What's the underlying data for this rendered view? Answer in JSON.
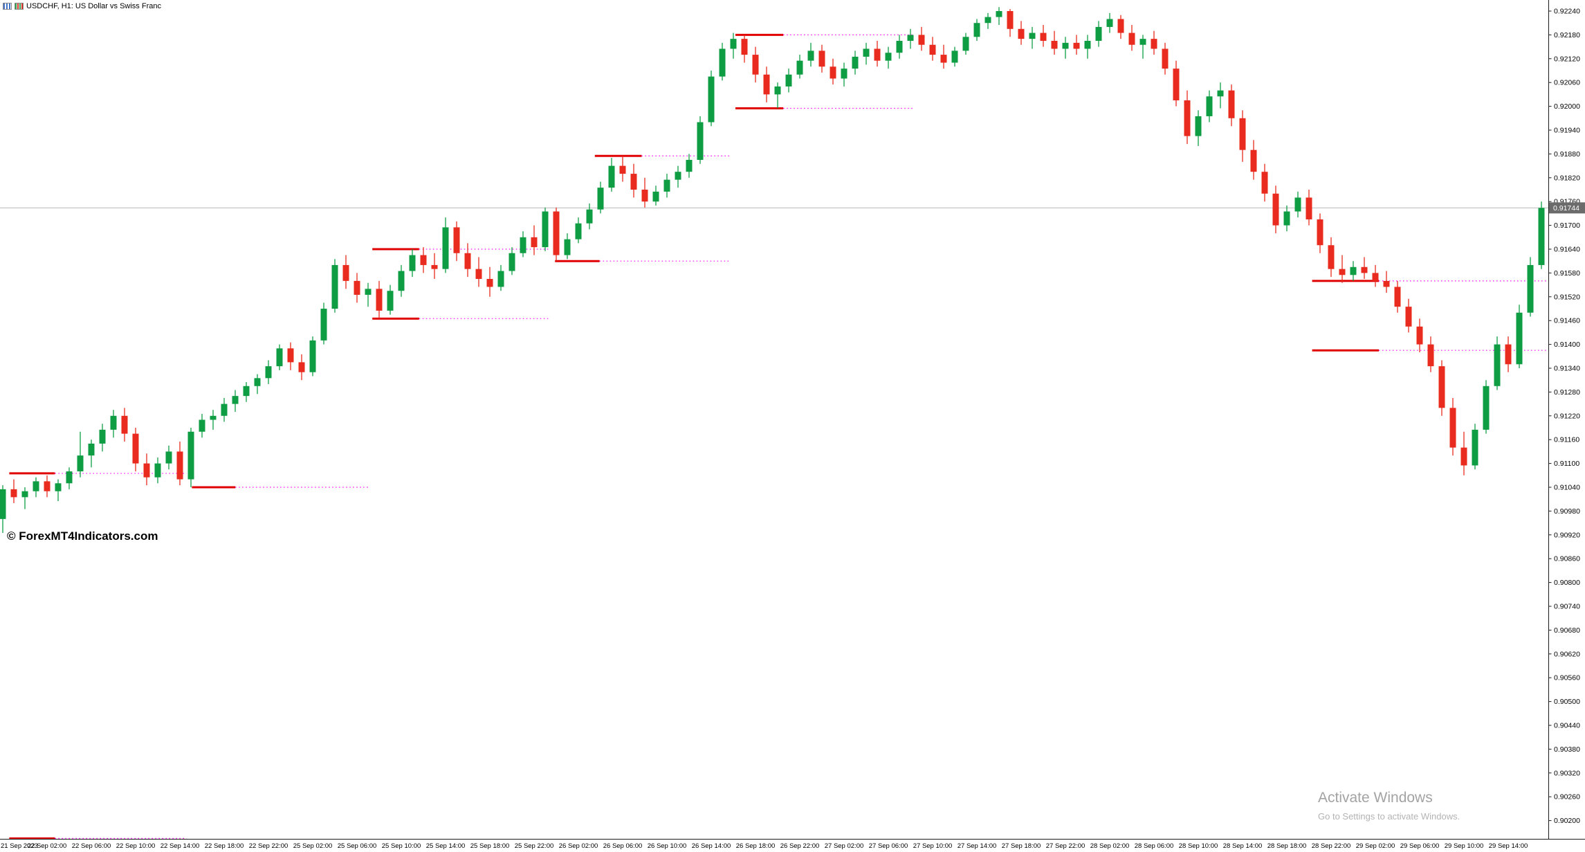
{
  "window": {
    "title": "USDCHF, H1: US Dollar vs Swiss Franc",
    "icons": [
      "chart-window-icon",
      "candlestick-icon"
    ]
  },
  "watermark": "© ForexMT4Indicators.com",
  "activation": {
    "line1": "Activate Windows",
    "line2": "Go to Settings to activate Windows."
  },
  "chart_data": {
    "type": "candlestick",
    "symbol": "USDCHF",
    "timeframe": "H1",
    "description": "US Dollar vs Swiss Franc",
    "current_price": "0.91744",
    "grid": false,
    "colors": {
      "background": "#ffffff",
      "bull": "#0f9d44",
      "bear": "#e82b1e",
      "level_solid": "#e00000",
      "level_dotted": "#ff00ff",
      "price_line": "#b9b9b9",
      "price_box_bg": "#6b6b6b",
      "axis": "#1a1a1a"
    },
    "y_axis": {
      "max": 0.9224,
      "min": 0.902,
      "step": 0.0006,
      "labels": [
        "0.92240",
        "0.92180",
        "0.92120",
        "0.92060",
        "0.92000",
        "0.91940",
        "0.91880",
        "0.91820",
        "0.91760",
        "0.91700",
        "0.91640",
        "0.91580",
        "0.91520",
        "0.91460",
        "0.91400",
        "0.91340",
        "0.91280",
        "0.91220",
        "0.91160",
        "0.91100",
        "0.91040",
        "0.90980",
        "0.90920",
        "0.90860",
        "0.90800",
        "0.90740",
        "0.90680",
        "0.90620",
        "0.90560",
        "0.90500",
        "0.90440",
        "0.90380",
        "0.90320",
        "0.90260",
        "0.90200"
      ]
    },
    "x_axis": {
      "labels": [
        "21 Sep 2023",
        "22 Sep 02:00",
        "22 Sep 06:00",
        "22 Sep 10:00",
        "22 Sep 14:00",
        "22 Sep 18:00",
        "22 Sep 22:00",
        "25 Sep 02:00",
        "25 Sep 06:00",
        "25 Sep 10:00",
        "25 Sep 14:00",
        "25 Sep 18:00",
        "25 Sep 22:00",
        "26 Sep 02:00",
        "26 Sep 06:00",
        "26 Sep 10:00",
        "26 Sep 14:00",
        "26 Sep 18:00",
        "26 Sep 22:00",
        "27 Sep 02:00",
        "27 Sep 06:00",
        "27 Sep 10:00",
        "27 Sep 14:00",
        "27 Sep 18:00",
        "27 Sep 22:00",
        "28 Sep 02:00",
        "28 Sep 06:00",
        "28 Sep 10:00",
        "28 Sep 14:00",
        "28 Sep 18:00",
        "28 Sep 22:00",
        "29 Sep 02:00",
        "29 Sep 06:00",
        "29 Sep 10:00",
        "29 Sep 14:00"
      ]
    },
    "levels": [
      {
        "price": 0.91075,
        "from": 0.9,
        "to": 4.4,
        "ext": 16.6
      },
      {
        "price": 0.90155,
        "from": 0.9,
        "to": 4.4,
        "ext": 16.6
      },
      {
        "price": 0.9104,
        "from": 17.4,
        "to": 20.7,
        "ext": 33.2
      },
      {
        "price": 0.9164,
        "from": 33.7,
        "to": 37.3,
        "ext": 49.4
      },
      {
        "price": 0.91465,
        "from": 33.7,
        "to": 37.3,
        "ext": 49.4
      },
      {
        "price": 0.91875,
        "from": 53.8,
        "to": 57.4,
        "ext": 65.7
      },
      {
        "price": 0.9161,
        "from": 50.2,
        "to": 53.6,
        "ext": 65.7
      },
      {
        "price": 0.9218,
        "from": 66.5,
        "to": 70.2,
        "ext": 82.2
      },
      {
        "price": 0.91995,
        "from": 66.5,
        "to": 70.2,
        "ext": 82.2
      },
      {
        "price": 0.9156,
        "from": 118.6,
        "to": 124.0,
        "ext": 139.5
      },
      {
        "price": 0.91385,
        "from": 118.6,
        "to": 124.0,
        "ext": 139.5
      }
    ],
    "candles": [
      [
        0.9096,
        0.91045,
        0.90925,
        0.91035
      ],
      [
        0.91035,
        0.9106,
        0.91,
        0.91015
      ],
      [
        0.91015,
        0.9104,
        0.90985,
        0.9103
      ],
      [
        0.9103,
        0.91065,
        0.91015,
        0.91055
      ],
      [
        0.91055,
        0.9107,
        0.91015,
        0.9103
      ],
      [
        0.9103,
        0.9106,
        0.91005,
        0.9105
      ],
      [
        0.9105,
        0.9109,
        0.91035,
        0.9108
      ],
      [
        0.9108,
        0.9118,
        0.91065,
        0.9112
      ],
      [
        0.9112,
        0.9116,
        0.9109,
        0.9115
      ],
      [
        0.9115,
        0.912,
        0.9113,
        0.91185
      ],
      [
        0.91185,
        0.91235,
        0.91165,
        0.9122
      ],
      [
        0.9122,
        0.9124,
        0.91155,
        0.91175
      ],
      [
        0.91175,
        0.9119,
        0.9108,
        0.911
      ],
      [
        0.911,
        0.91125,
        0.91045,
        0.91065
      ],
      [
        0.91065,
        0.91115,
        0.9105,
        0.911
      ],
      [
        0.911,
        0.91145,
        0.91085,
        0.9113
      ],
      [
        0.9113,
        0.91155,
        0.91045,
        0.9106
      ],
      [
        0.9106,
        0.9119,
        0.9104,
        0.9118
      ],
      [
        0.9118,
        0.91225,
        0.91165,
        0.9121
      ],
      [
        0.9121,
        0.91235,
        0.91185,
        0.9122
      ],
      [
        0.9122,
        0.91265,
        0.91205,
        0.9125
      ],
      [
        0.9125,
        0.91285,
        0.9123,
        0.9127
      ],
      [
        0.9127,
        0.91305,
        0.91255,
        0.91295
      ],
      [
        0.91295,
        0.91325,
        0.91275,
        0.91315
      ],
      [
        0.91315,
        0.9136,
        0.913,
        0.91345
      ],
      [
        0.91345,
        0.914,
        0.91335,
        0.9139
      ],
      [
        0.9139,
        0.91405,
        0.91335,
        0.91355
      ],
      [
        0.91355,
        0.91375,
        0.9131,
        0.9133
      ],
      [
        0.9133,
        0.9142,
        0.9132,
        0.9141
      ],
      [
        0.9141,
        0.91505,
        0.914,
        0.9149
      ],
      [
        0.9149,
        0.91615,
        0.9148,
        0.916
      ],
      [
        0.916,
        0.91625,
        0.9154,
        0.9156
      ],
      [
        0.9156,
        0.9158,
        0.91505,
        0.91525
      ],
      [
        0.91525,
        0.91555,
        0.91495,
        0.9154
      ],
      [
        0.9154,
        0.9156,
        0.91465,
        0.91485
      ],
      [
        0.91485,
        0.9155,
        0.91475,
        0.91535
      ],
      [
        0.91535,
        0.916,
        0.9152,
        0.91585
      ],
      [
        0.91585,
        0.9164,
        0.9157,
        0.91625
      ],
      [
        0.91625,
        0.91645,
        0.9158,
        0.916
      ],
      [
        0.916,
        0.9163,
        0.91565,
        0.9159
      ],
      [
        0.9159,
        0.9172,
        0.9158,
        0.91695
      ],
      [
        0.91695,
        0.9171,
        0.9161,
        0.9163
      ],
      [
        0.9163,
        0.91655,
        0.9157,
        0.9159
      ],
      [
        0.9159,
        0.9162,
        0.91545,
        0.91565
      ],
      [
        0.91565,
        0.91595,
        0.9152,
        0.91545
      ],
      [
        0.91545,
        0.916,
        0.91535,
        0.91585
      ],
      [
        0.91585,
        0.91645,
        0.91575,
        0.9163
      ],
      [
        0.9163,
        0.91685,
        0.9162,
        0.9167
      ],
      [
        0.9167,
        0.917,
        0.91625,
        0.91645
      ],
      [
        0.91645,
        0.91745,
        0.91635,
        0.91735
      ],
      [
        0.91735,
        0.91745,
        0.9161,
        0.91625
      ],
      [
        0.91625,
        0.9168,
        0.91615,
        0.91665
      ],
      [
        0.91665,
        0.9172,
        0.91655,
        0.91705
      ],
      [
        0.91705,
        0.91755,
        0.9169,
        0.9174
      ],
      [
        0.9174,
        0.9181,
        0.9173,
        0.91795
      ],
      [
        0.91795,
        0.9187,
        0.91785,
        0.9185
      ],
      [
        0.9185,
        0.91875,
        0.9181,
        0.9183
      ],
      [
        0.9183,
        0.91855,
        0.9177,
        0.9179
      ],
      [
        0.9179,
        0.9182,
        0.91745,
        0.9176
      ],
      [
        0.9176,
        0.918,
        0.9175,
        0.91785
      ],
      [
        0.91785,
        0.9183,
        0.9177,
        0.91815
      ],
      [
        0.91815,
        0.9185,
        0.91795,
        0.91835
      ],
      [
        0.91835,
        0.9188,
        0.9182,
        0.91865
      ],
      [
        0.91865,
        0.91975,
        0.91855,
        0.9196
      ],
      [
        0.9196,
        0.9209,
        0.9195,
        0.92075
      ],
      [
        0.92075,
        0.9216,
        0.92065,
        0.92145
      ],
      [
        0.92145,
        0.92185,
        0.9212,
        0.9217
      ],
      [
        0.9217,
        0.9218,
        0.9211,
        0.9213
      ],
      [
        0.9213,
        0.9215,
        0.9206,
        0.9208
      ],
      [
        0.9208,
        0.921,
        0.9201,
        0.9203
      ],
      [
        0.9203,
        0.9206,
        0.91995,
        0.9205
      ],
      [
        0.9205,
        0.92095,
        0.92035,
        0.9208
      ],
      [
        0.9208,
        0.9213,
        0.9207,
        0.92115
      ],
      [
        0.92115,
        0.9216,
        0.921,
        0.9214
      ],
      [
        0.9214,
        0.92155,
        0.92085,
        0.921
      ],
      [
        0.921,
        0.9212,
        0.92055,
        0.9207
      ],
      [
        0.9207,
        0.9211,
        0.9205,
        0.92095
      ],
      [
        0.92095,
        0.9214,
        0.9208,
        0.92125
      ],
      [
        0.92125,
        0.9216,
        0.92105,
        0.92145
      ],
      [
        0.92145,
        0.92165,
        0.921,
        0.92115
      ],
      [
        0.92115,
        0.9215,
        0.92095,
        0.92135
      ],
      [
        0.92135,
        0.9218,
        0.9212,
        0.92165
      ],
      [
        0.92165,
        0.92195,
        0.92145,
        0.9218
      ],
      [
        0.9218,
        0.922,
        0.9214,
        0.92155
      ],
      [
        0.92155,
        0.92175,
        0.92115,
        0.9213
      ],
      [
        0.9213,
        0.92155,
        0.92095,
        0.9211
      ],
      [
        0.9211,
        0.9215,
        0.921,
        0.9214
      ],
      [
        0.9214,
        0.92185,
        0.9213,
        0.92175
      ],
      [
        0.92175,
        0.9222,
        0.92165,
        0.9221
      ],
      [
        0.9221,
        0.92235,
        0.92195,
        0.92225
      ],
      [
        0.92225,
        0.9225,
        0.92205,
        0.9224
      ],
      [
        0.9224,
        0.92245,
        0.92175,
        0.92195
      ],
      [
        0.92195,
        0.92215,
        0.92155,
        0.9217
      ],
      [
        0.9217,
        0.922,
        0.92145,
        0.92185
      ],
      [
        0.92185,
        0.92205,
        0.9215,
        0.92165
      ],
      [
        0.92165,
        0.9219,
        0.9213,
        0.92145
      ],
      [
        0.92145,
        0.92175,
        0.9212,
        0.9216
      ],
      [
        0.9216,
        0.9218,
        0.9213,
        0.92145
      ],
      [
        0.92145,
        0.9218,
        0.9212,
        0.92165
      ],
      [
        0.92165,
        0.92215,
        0.9215,
        0.922
      ],
      [
        0.922,
        0.92235,
        0.92185,
        0.9222
      ],
      [
        0.9222,
        0.9223,
        0.9217,
        0.92185
      ],
      [
        0.92185,
        0.92205,
        0.9214,
        0.92155
      ],
      [
        0.92155,
        0.9218,
        0.9212,
        0.9217
      ],
      [
        0.9217,
        0.9219,
        0.9213,
        0.92145
      ],
      [
        0.92145,
        0.9216,
        0.9208,
        0.92095
      ],
      [
        0.92095,
        0.92115,
        0.92,
        0.92015
      ],
      [
        0.92015,
        0.9204,
        0.91905,
        0.91925
      ],
      [
        0.91925,
        0.9199,
        0.919,
        0.91975
      ],
      [
        0.91975,
        0.9204,
        0.9196,
        0.92025
      ],
      [
        0.92025,
        0.9206,
        0.91995,
        0.9204
      ],
      [
        0.9204,
        0.92055,
        0.9195,
        0.9197
      ],
      [
        0.9197,
        0.9199,
        0.9186,
        0.9189
      ],
      [
        0.9189,
        0.91915,
        0.91815,
        0.91835
      ],
      [
        0.91835,
        0.91855,
        0.9176,
        0.9178
      ],
      [
        0.9178,
        0.918,
        0.9168,
        0.917
      ],
      [
        0.917,
        0.9175,
        0.91685,
        0.91735
      ],
      [
        0.91735,
        0.91785,
        0.9172,
        0.9177
      ],
      [
        0.9177,
        0.9179,
        0.917,
        0.91715
      ],
      [
        0.91715,
        0.9173,
        0.9163,
        0.9165
      ],
      [
        0.9165,
        0.9167,
        0.9157,
        0.9159
      ],
      [
        0.9159,
        0.91625,
        0.91555,
        0.91575
      ],
      [
        0.91575,
        0.9161,
        0.9156,
        0.91595
      ],
      [
        0.91595,
        0.9162,
        0.91565,
        0.9158
      ],
      [
        0.9158,
        0.916,
        0.91545,
        0.9156
      ],
      [
        0.9156,
        0.91585,
        0.9153,
        0.91545
      ],
      [
        0.91545,
        0.9156,
        0.9148,
        0.91495
      ],
      [
        0.91495,
        0.91515,
        0.9143,
        0.91445
      ],
      [
        0.91445,
        0.91465,
        0.9138,
        0.914
      ],
      [
        0.914,
        0.9142,
        0.9133,
        0.91345
      ],
      [
        0.91345,
        0.9136,
        0.9122,
        0.9124
      ],
      [
        0.9124,
        0.91265,
        0.9112,
        0.9114
      ],
      [
        0.9114,
        0.9118,
        0.9107,
        0.91095
      ],
      [
        0.91095,
        0.912,
        0.91085,
        0.91185
      ],
      [
        0.91185,
        0.9131,
        0.91175,
        0.91295
      ],
      [
        0.91295,
        0.9142,
        0.91285,
        0.914
      ],
      [
        0.914,
        0.9142,
        0.9133,
        0.9135
      ],
      [
        0.9135,
        0.915,
        0.9134,
        0.9148
      ],
      [
        0.9148,
        0.9162,
        0.9147,
        0.916
      ],
      [
        0.916,
        0.9176,
        0.9159,
        0.91744
      ]
    ]
  }
}
